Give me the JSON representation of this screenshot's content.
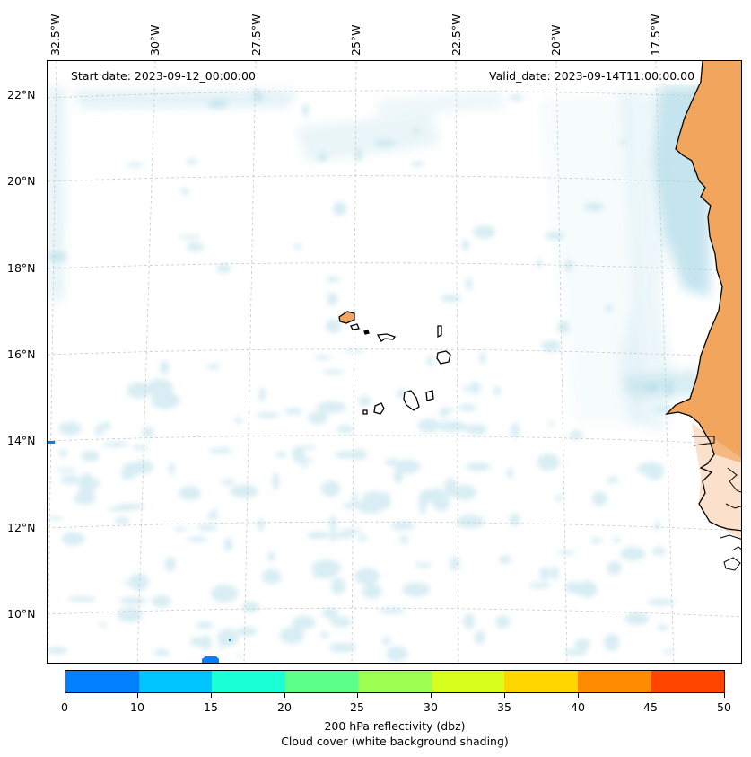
{
  "map": {
    "start_date": "Start date: 2023-09-12_00:00:00",
    "valid_date": "Valid_date: 2023-09-14T11:00:00.00",
    "lon_labels": [
      "32.5°W",
      "30°W",
      "27.5°W",
      "25°W",
      "22.5°W",
      "20°W",
      "17.5°W"
    ],
    "lat_labels": [
      "22°N",
      "20°N",
      "18°N",
      "16°N",
      "14°N",
      "12°N",
      "10°N"
    ],
    "land_color": "#f2a55c",
    "cloud_color": "#a9d8e6",
    "grid_color": "#c8c8c8"
  },
  "colorbar": {
    "colors": [
      "#0080ff",
      "#00c4ff",
      "#1affd5",
      "#5cff8a",
      "#9cff52",
      "#d6ff1e",
      "#ffd700",
      "#ff8c00",
      "#ff4500"
    ],
    "ticks": [
      "0",
      "10",
      "15",
      "20",
      "25",
      "30",
      "35",
      "40",
      "45",
      "50"
    ],
    "label": "200 hPa reflectivity (dbz)",
    "sublabel": "Cloud cover (white background shading)"
  }
}
